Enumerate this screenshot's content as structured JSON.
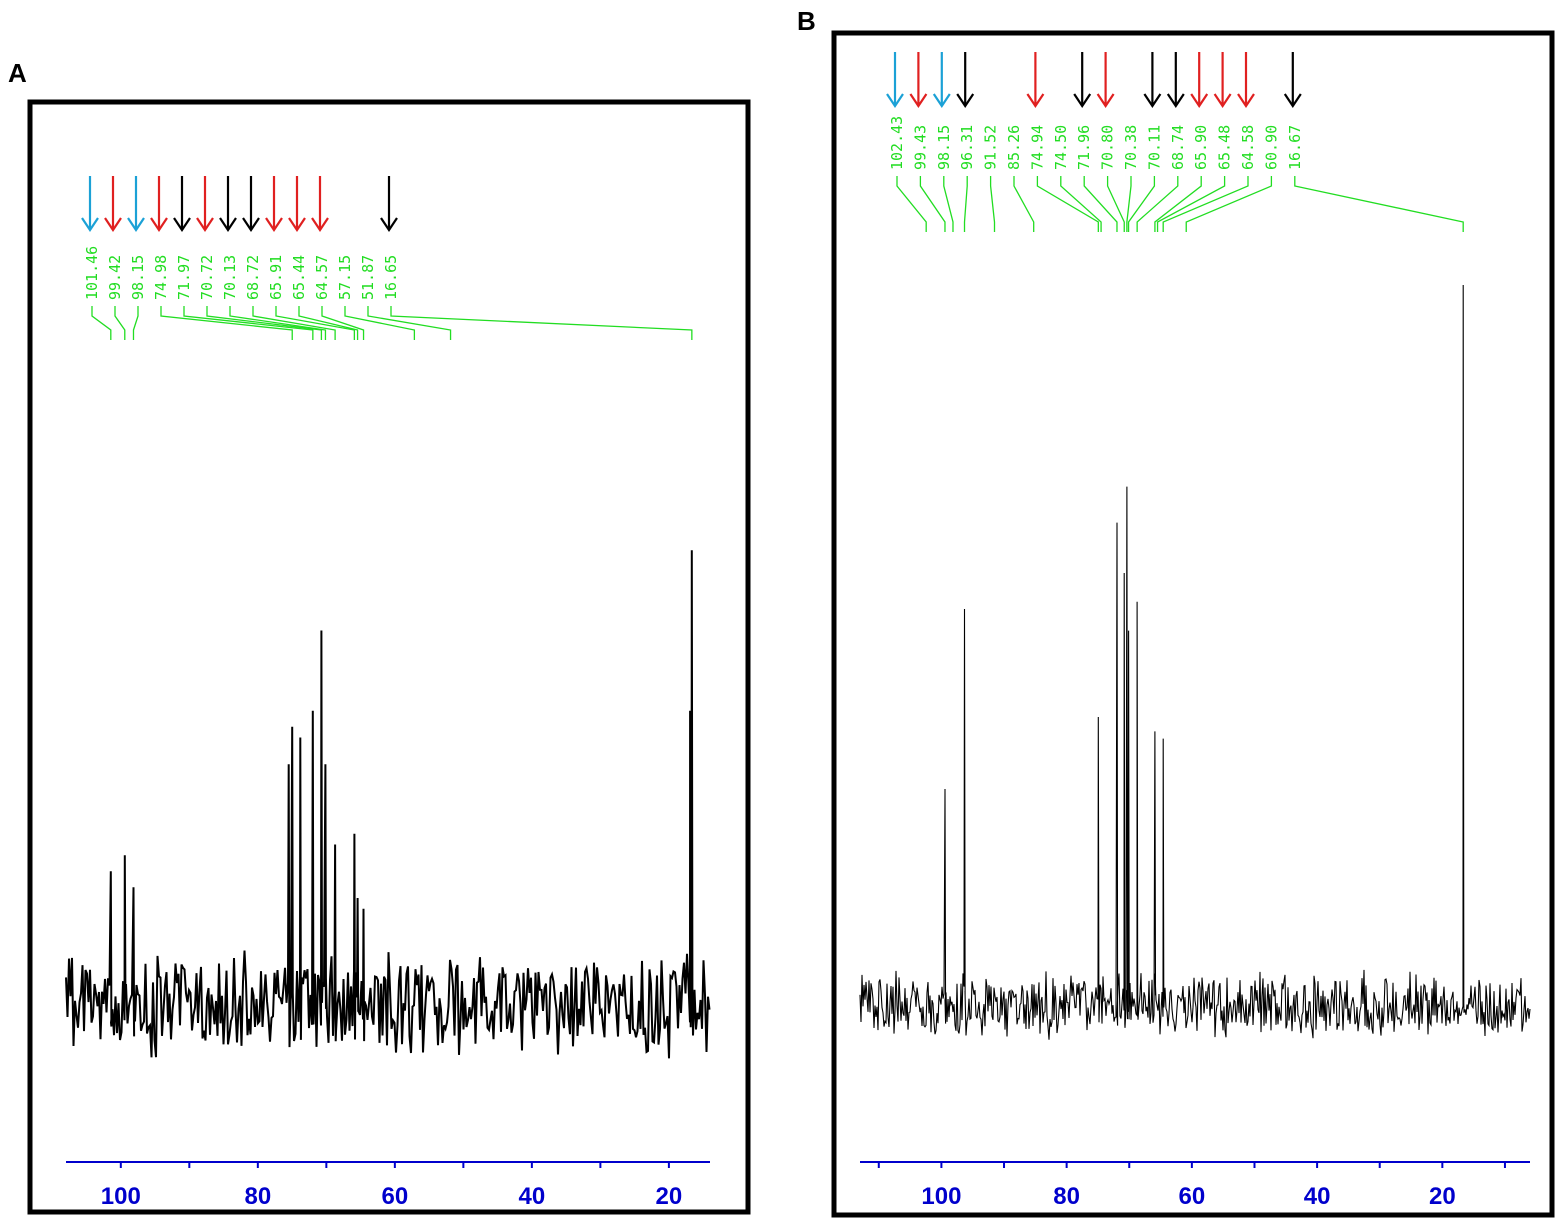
{
  "chart_data": [
    {
      "type": "line",
      "panel_label": "A",
      "x_axis": {
        "ticks": [
          100,
          80,
          60,
          40,
          20
        ],
        "xlim": [
          108,
          14
        ],
        "reversed": true,
        "tick_color": "#0000cc"
      },
      "peak_labels": [
        "101.46",
        "99.42",
        "98.15",
        "74.98",
        "71.97",
        "70.72",
        "70.13",
        "68.72",
        "65.91",
        "65.44",
        "64.57",
        "57.15",
        "51.87",
        "16.65"
      ],
      "peaks": [
        {
          "x": 101.46,
          "y": 0.25
        },
        {
          "x": 99.42,
          "y": 0.28
        },
        {
          "x": 98.15,
          "y": 0.22
        },
        {
          "x": 75.5,
          "y": 0.45
        },
        {
          "x": 74.98,
          "y": 0.52
        },
        {
          "x": 73.8,
          "y": 0.5
        },
        {
          "x": 71.97,
          "y": 0.55
        },
        {
          "x": 70.72,
          "y": 0.7
        },
        {
          "x": 70.13,
          "y": 0.45
        },
        {
          "x": 68.72,
          "y": 0.3
        },
        {
          "x": 65.91,
          "y": 0.32
        },
        {
          "x": 65.44,
          "y": 0.2
        },
        {
          "x": 64.57,
          "y": 0.18
        },
        {
          "x": 16.9,
          "y": 0.55
        },
        {
          "x": 16.65,
          "y": 0.85
        }
      ],
      "arrows": [
        {
          "at": "101.46",
          "color": "#1ba1d6"
        },
        {
          "at": "99.42",
          "color": "#e02020"
        },
        {
          "at": "98.15",
          "color": "#1ba1d6"
        },
        {
          "at": "74.98",
          "color": "#e02020"
        },
        {
          "at": "71.97",
          "color": "#000000"
        },
        {
          "at": "70.72",
          "color": "#e02020"
        },
        {
          "at": "70.13",
          "color": "#000000"
        },
        {
          "at": "68.72",
          "color": "#000000"
        },
        {
          "at": "65.91",
          "color": "#e02020"
        },
        {
          "at": "65.44",
          "color": "#e02020"
        },
        {
          "at": "64.57",
          "color": "#e02020"
        },
        {
          "at": "16.65",
          "color": "#000000"
        }
      ],
      "label_color": "#22dd22",
      "noise": "high"
    },
    {
      "type": "line",
      "panel_label": "B",
      "x_axis": {
        "ticks": [
          100,
          80,
          60,
          40,
          20
        ],
        "xlim": [
          113,
          6
        ],
        "reversed": true,
        "tick_color": "#0000cc"
      },
      "peak_labels": [
        "102.43",
        "99.43",
        "98.15",
        "96.31",
        "91.52",
        "85.26",
        "74.94",
        "74.50",
        "71.96",
        "70.80",
        "70.38",
        "70.11",
        "68.74",
        "65.90",
        "65.48",
        "64.58",
        "60.90",
        "16.67"
      ],
      "peaks": [
        {
          "x": 99.43,
          "y": 0.3
        },
        {
          "x": 96.31,
          "y": 0.55
        },
        {
          "x": 74.94,
          "y": 0.4
        },
        {
          "x": 71.96,
          "y": 0.67
        },
        {
          "x": 70.8,
          "y": 0.6
        },
        {
          "x": 70.38,
          "y": 0.72
        },
        {
          "x": 70.11,
          "y": 0.52
        },
        {
          "x": 68.74,
          "y": 0.56
        },
        {
          "x": 65.9,
          "y": 0.38
        },
        {
          "x": 64.58,
          "y": 0.37
        },
        {
          "x": 16.67,
          "y": 1.0
        }
      ],
      "arrows": [
        {
          "at": "102.43",
          "color": "#1ba1d6"
        },
        {
          "at": "99.43",
          "color": "#e02020"
        },
        {
          "at": "98.15",
          "color": "#1ba1d6"
        },
        {
          "at": "96.31",
          "color": "#000000"
        },
        {
          "at": "74.94",
          "color": "#e02020"
        },
        {
          "at": "71.96",
          "color": "#000000"
        },
        {
          "at": "70.80",
          "color": "#e02020"
        },
        {
          "at": "70.11",
          "color": "#000000"
        },
        {
          "at": "68.74",
          "color": "#000000"
        },
        {
          "at": "65.90",
          "color": "#e02020"
        },
        {
          "at": "65.48",
          "color": "#e02020"
        },
        {
          "at": "64.58",
          "color": "#e02020"
        },
        {
          "at": "16.67",
          "color": "#000000"
        }
      ],
      "label_color": "#22dd22",
      "noise": "medium"
    }
  ]
}
